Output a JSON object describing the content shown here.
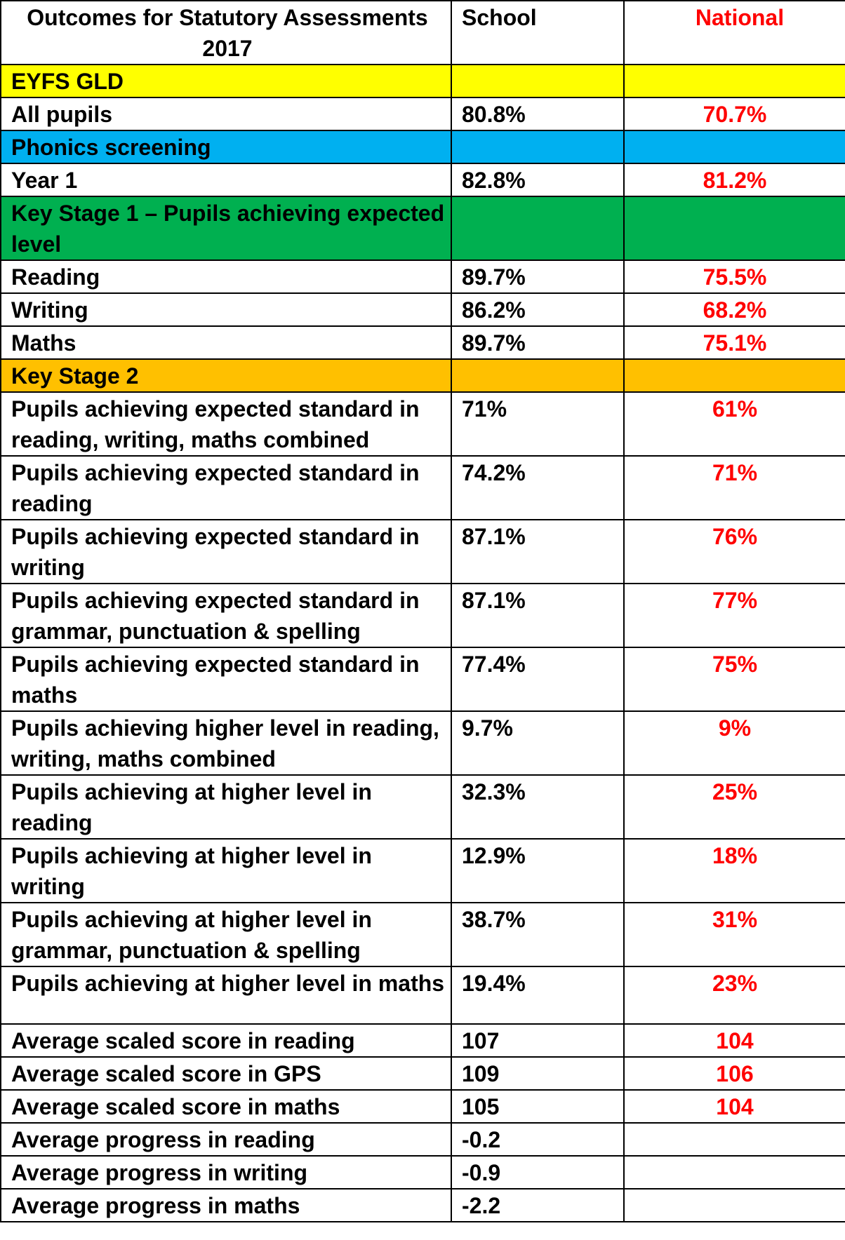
{
  "header": {
    "title": "Outcomes for Statutory Assessments 2017",
    "school": "School",
    "national": "National"
  },
  "colors": {
    "eyfs": "#ffff00",
    "phonics": "#00b0f0",
    "ks1": "#00b050",
    "ks2": "#ffc000",
    "national_text": "#ff0000"
  },
  "sections": {
    "eyfs": "EYFS  GLD",
    "phonics": "Phonics screening",
    "ks1": "Key Stage 1 – Pupils achieving expected level",
    "ks2": "Key Stage 2"
  },
  "rows": [
    {
      "label": "All pupils",
      "school": "80.8%",
      "national": "70.7%"
    },
    {
      "label": "Year 1",
      "school": "82.8%",
      "national": "81.2%"
    },
    {
      "label": "Reading",
      "school": "89.7%",
      "national": "75.5%"
    },
    {
      "label": "Writing",
      "school": "86.2%",
      "national": "68.2%"
    },
    {
      "label": "Maths",
      "school": "89.7%",
      "national": "75.1%"
    },
    {
      "label": "Pupils achieving expected standard in reading, writing, maths combined",
      "school": "71%",
      "national": "61%"
    },
    {
      "label": "Pupils achieving expected standard in reading",
      "school": "74.2%",
      "national": "71%"
    },
    {
      "label": "Pupils achieving expected standard in writing",
      "school": "87.1%",
      "national": "76%"
    },
    {
      "label": "Pupils achieving expected standard in grammar, punctuation & spelling",
      "school": "87.1%",
      "national": "77%"
    },
    {
      "label": "Pupils achieving expected standard in maths",
      "school": "77.4%",
      "national": "75%"
    },
    {
      "label": "Pupils achieving higher level in reading, writing, maths combined",
      "school": "9.7%",
      "national": "9%"
    },
    {
      "label": "Pupils achieving at higher level  in reading",
      "school": "32.3%",
      "national": "25%"
    },
    {
      "label": "Pupils achieving at higher level  in writing",
      "school": "12.9%",
      "national": "18%"
    },
    {
      "label": "Pupils achieving at higher level in grammar, punctuation & spelling",
      "school": "38.7%",
      "national": "31%"
    },
    {
      "label": "Pupils achieving at higher level  in maths",
      "school": "19.4%",
      "national": "23%"
    },
    {
      "label": "Average scaled score in reading",
      "school": "107",
      "national": "104"
    },
    {
      "label": "Average scaled score in GPS",
      "school": "109",
      "national": "106"
    },
    {
      "label": "Average scaled score in maths",
      "school": "105",
      "national": "104"
    },
    {
      "label": "Average progress in reading",
      "school": "-0.2",
      "national": ""
    },
    {
      "label": "Average progress in writing",
      "school": "-0.9",
      "national": ""
    },
    {
      "label": "Average progress in maths",
      "school": "-2.2",
      "national": ""
    }
  ]
}
